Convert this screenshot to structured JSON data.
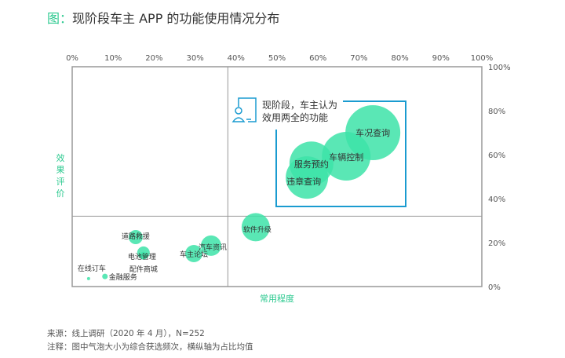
{
  "title_prefix": "图：",
  "title": "现阶段车主 APP 的功能使用情况分布",
  "source": "来源：线上调研（2020 年 4 月），N=252",
  "note": "注释：图中气泡大小为综合获选频次，横纵轴为占比均值",
  "highlight_text": [
    "现阶段，车主认为",
    "效用两全的功能"
  ],
  "colors": {
    "bubble": "#3de3a8",
    "accent": "#2bc98f",
    "box": "#1a9bd0",
    "axis": "#999"
  },
  "chart_data": {
    "type": "scatter",
    "title": "现阶段车主 APP 的功能使用情况分布",
    "xlabel": "常用程度",
    "ylabel": "效果评价",
    "xlim": [
      0,
      100
    ],
    "ylim": [
      0,
      100
    ],
    "x_ticks": [
      "0%",
      "10%",
      "20%",
      "30%",
      "40%",
      "50%",
      "60%",
      "70%",
      "80%",
      "90%",
      "100%"
    ],
    "y_ticks": [
      "0%",
      "20%",
      "40%",
      "60%",
      "80%",
      "100%"
    ],
    "divider": {
      "x": 38,
      "y": 32
    },
    "points": [
      {
        "name": "车况查询",
        "x": 73.4,
        "y": 70,
        "size": 35
      },
      {
        "name": "车辆控制",
        "x": 66.9,
        "y": 59.3,
        "size": 31
      },
      {
        "name": "服务预约",
        "x": 58.4,
        "y": 56,
        "size": 28
      },
      {
        "name": "违章查询",
        "x": 57.3,
        "y": 49.6,
        "size": 27
      },
      {
        "name": "软件升级",
        "x": 44.8,
        "y": 27,
        "size": 18
      },
      {
        "name": "汽车资讯",
        "x": 33.9,
        "y": 18.6,
        "size": 13
      },
      {
        "name": "车主论坛",
        "x": 29.7,
        "y": 15,
        "size": 11
      },
      {
        "name": "道路救援",
        "x": 15.5,
        "y": 22.5,
        "size": 9
      },
      {
        "name": "电池管理",
        "x": 17.4,
        "y": 15.4,
        "size": 8
      },
      {
        "name": "配件商城",
        "x": 17.4,
        "y": 14,
        "size": 5
      },
      {
        "name": "金融服务",
        "x": 8,
        "y": 4.6,
        "size": 3.5
      },
      {
        "name": "在线订车",
        "x": 4,
        "y": 3.6,
        "size": 2
      }
    ]
  }
}
